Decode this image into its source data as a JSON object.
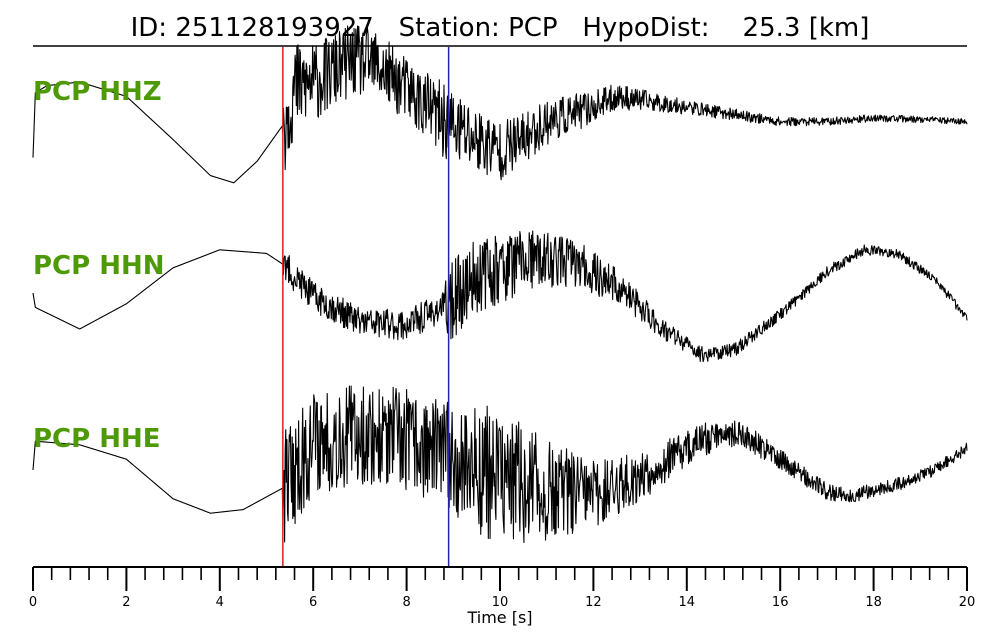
{
  "header": {
    "title": "ID: 251128193927   Station: PCP   HypoDist:    25.3 [km]"
  },
  "colors": {
    "channel_label": "#4d9a06",
    "p_pick": "#e41a1c",
    "s_pick": "#2222aa",
    "trace": "#000000"
  },
  "chart_data": {
    "type": "line",
    "title": "ID: 251128193927   Station: PCP   HypoDist:    25.3 [km]",
    "xlabel": "Time [s]",
    "xlim": [
      0,
      20
    ],
    "x_ticks": [
      0,
      2,
      4,
      6,
      8,
      10,
      12,
      14,
      16,
      18,
      20
    ],
    "minor_tick_step": 0.4,
    "picks": [
      {
        "phase": "P",
        "time": 5.35,
        "color": "#e41a1c"
      },
      {
        "phase": "S",
        "time": 8.9,
        "color": "#2222aa"
      }
    ],
    "series": [
      {
        "name": "PCP HHZ",
        "smooth": [
          [
            0,
            -0.55
          ],
          [
            0.05,
            0.35
          ],
          [
            0.3,
            0.45
          ],
          [
            1,
            0.5
          ],
          [
            2,
            0.3
          ],
          [
            3,
            -0.3
          ],
          [
            3.8,
            -0.8
          ],
          [
            4.3,
            -0.9
          ],
          [
            4.8,
            -0.6
          ],
          [
            5.35,
            -0.1
          ],
          [
            5.6,
            0.4
          ],
          [
            6.2,
            0.55
          ],
          [
            6.8,
            0.8
          ],
          [
            7.3,
            0.75
          ],
          [
            8,
            0.4
          ],
          [
            8.9,
            -0.1
          ],
          [
            9.5,
            -0.3
          ],
          [
            10,
            -0.45
          ],
          [
            10.5,
            -0.3
          ],
          [
            11,
            -0.05
          ],
          [
            11.5,
            0.05
          ],
          [
            12,
            0.15
          ],
          [
            12.5,
            0.3
          ],
          [
            13,
            0.25
          ],
          [
            14,
            0.15
          ],
          [
            15,
            0.05
          ],
          [
            16,
            -0.05
          ],
          [
            17,
            -0.05
          ],
          [
            18,
            0.0
          ],
          [
            19,
            -0.02
          ],
          [
            20,
            -0.05
          ]
        ],
        "noise": [
          [
            0,
            0
          ],
          [
            5.34,
            0
          ],
          [
            5.35,
            0.75
          ],
          [
            6,
            0.55
          ],
          [
            8,
            0.45
          ],
          [
            9,
            0.55
          ],
          [
            10,
            0.42
          ],
          [
            11,
            0.32
          ],
          [
            12.5,
            0.18
          ],
          [
            14,
            0.1
          ],
          [
            16,
            0.06
          ],
          [
            20,
            0.04
          ]
        ],
        "seed": 11
      },
      {
        "name": "PCP HHN",
        "smooth": [
          [
            0,
            0.0
          ],
          [
            0.05,
            -0.2
          ],
          [
            1,
            -0.5
          ],
          [
            2,
            -0.15
          ],
          [
            3,
            0.35
          ],
          [
            4,
            0.6
          ],
          [
            5,
            0.55
          ],
          [
            5.35,
            0.4
          ],
          [
            6,
            -0.05
          ],
          [
            7,
            -0.4
          ],
          [
            8,
            -0.45
          ],
          [
            8.9,
            -0.15
          ],
          [
            9.5,
            0.25
          ],
          [
            10.5,
            0.45
          ],
          [
            11.5,
            0.45
          ],
          [
            12.5,
            0.1
          ],
          [
            13.5,
            -0.5
          ],
          [
            14.3,
            -0.85
          ],
          [
            15,
            -0.8
          ],
          [
            16,
            -0.3
          ],
          [
            17,
            0.3
          ],
          [
            17.8,
            0.6
          ],
          [
            18.5,
            0.55
          ],
          [
            19.3,
            0.2
          ],
          [
            20,
            -0.35
          ]
        ],
        "noise": [
          [
            0,
            0
          ],
          [
            5.34,
            0
          ],
          [
            5.35,
            0.22
          ],
          [
            7,
            0.2
          ],
          [
            8.8,
            0.22
          ],
          [
            8.9,
            0.55
          ],
          [
            10,
            0.5
          ],
          [
            11,
            0.4
          ],
          [
            12,
            0.3
          ],
          [
            13,
            0.2
          ],
          [
            14,
            0.12
          ],
          [
            16,
            0.08
          ],
          [
            20,
            0.06
          ]
        ],
        "seed": 23
      },
      {
        "name": "PCP HHE",
        "smooth": [
          [
            0,
            0.0
          ],
          [
            0.05,
            0.4
          ],
          [
            1,
            0.35
          ],
          [
            2,
            0.15
          ],
          [
            3,
            -0.4
          ],
          [
            3.8,
            -0.6
          ],
          [
            4.5,
            -0.55
          ],
          [
            5.35,
            -0.25
          ],
          [
            6,
            0.4
          ],
          [
            7,
            0.5
          ],
          [
            8,
            0.4
          ],
          [
            8.9,
            0.2
          ],
          [
            10,
            -0.1
          ],
          [
            11,
            -0.3
          ],
          [
            12,
            -0.35
          ],
          [
            13,
            -0.1
          ],
          [
            14,
            0.3
          ],
          [
            14.8,
            0.55
          ],
          [
            15.3,
            0.45
          ],
          [
            16,
            0.15
          ],
          [
            17,
            -0.3
          ],
          [
            17.5,
            -0.35
          ],
          [
            18.5,
            -0.2
          ],
          [
            19.3,
            0.0
          ],
          [
            20,
            0.3
          ]
        ],
        "noise": [
          [
            0,
            0
          ],
          [
            5.34,
            0
          ],
          [
            5.35,
            0.8
          ],
          [
            7,
            0.7
          ],
          [
            8.9,
            0.75
          ],
          [
            9.5,
            0.95
          ],
          [
            10.5,
            0.85
          ],
          [
            11.5,
            0.6
          ],
          [
            12.5,
            0.4
          ],
          [
            14,
            0.25
          ],
          [
            16,
            0.14
          ],
          [
            18,
            0.1
          ],
          [
            20,
            0.08
          ]
        ],
        "seed": 37
      }
    ]
  }
}
